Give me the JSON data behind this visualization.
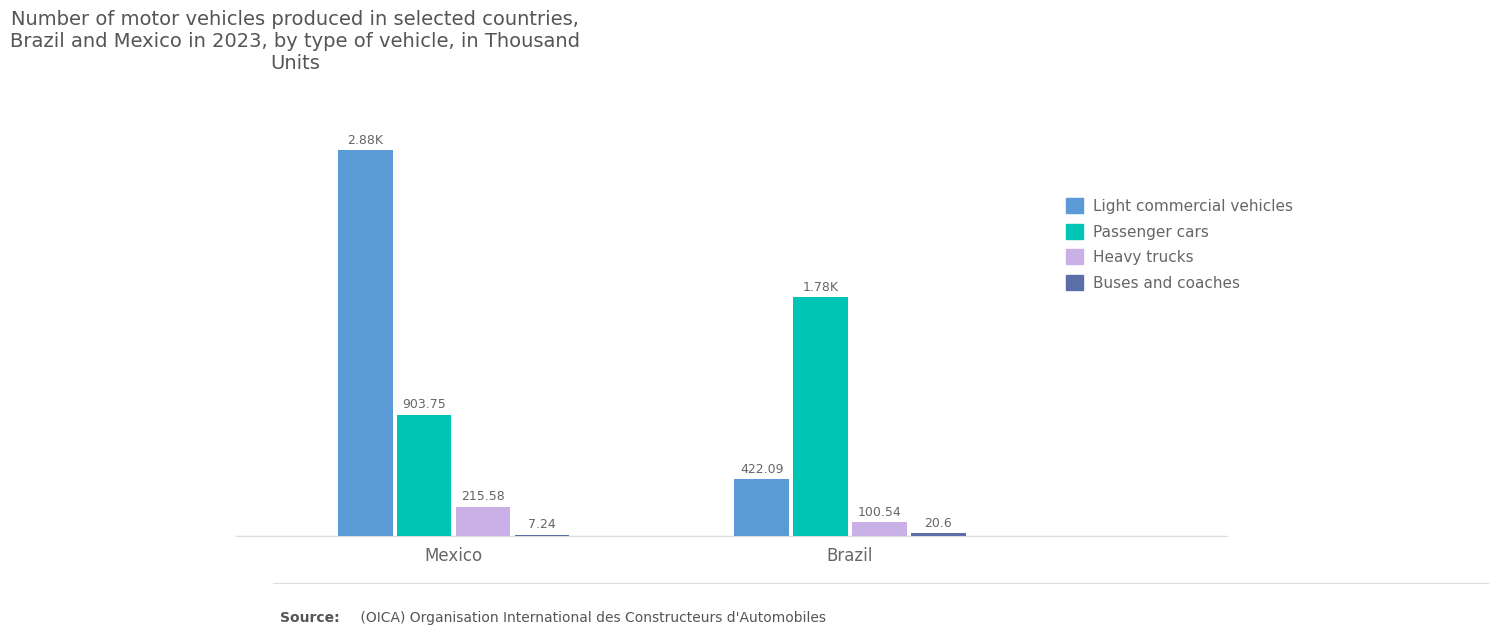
{
  "title": "Number of motor vehicles produced in selected countries,\nBrazil and Mexico in 2023, by type of vehicle, in Thousand\nUnits",
  "title_color": "#555555",
  "title_fontsize": 14,
  "countries": [
    "Mexico",
    "Brazil"
  ],
  "categories": [
    "Light commercial vehicles",
    "Passenger cars",
    "Heavy trucks",
    "Buses and coaches"
  ],
  "colors": [
    "#5B9BD5",
    "#00C4B4",
    "#C9B1E8",
    "#5A6FA8"
  ],
  "values": {
    "Mexico": [
      2880.0,
      903.75,
      215.58,
      7.24
    ],
    "Brazil": [
      422.09,
      1780.0,
      100.54,
      20.6
    ]
  },
  "labels": {
    "Mexico": [
      "2.88K",
      "903.75",
      "215.58",
      "7.24"
    ],
    "Brazil": [
      "422.09",
      "1.78K",
      "100.54",
      "20.6"
    ]
  },
  "background_color": "#ffffff",
  "source_bold": "Source:",
  "source_text": " (OICA) Organisation International des Constructeurs d'Automobiles",
  "ylim": [
    0,
    3300
  ],
  "bar_width": 0.055,
  "group_centers": [
    0.22,
    0.62
  ],
  "xlim": [
    0.0,
    1.0
  ]
}
